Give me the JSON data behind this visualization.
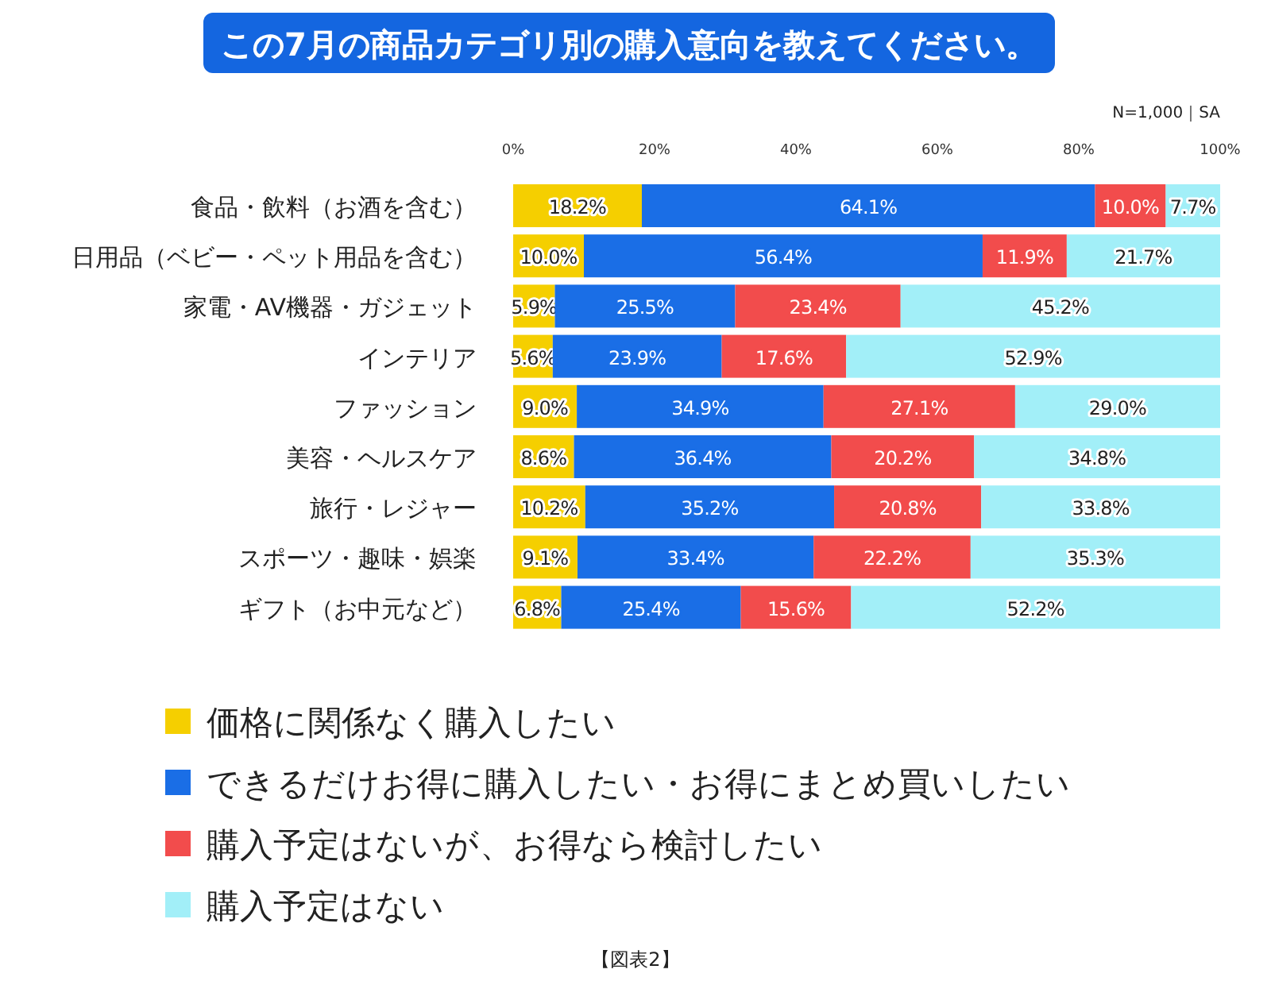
{
  "chart_data": {
    "type": "bar",
    "orientation": "horizontal",
    "stacked": true,
    "title": "この7月の商品カテゴリ別の購入意向を教えてください。",
    "categories": [
      "食品・飲料（お酒を含む）",
      "日用品（ベビー・ペット用品を含む）",
      "家電・AV機器・ガジェット",
      "インテリア",
      "ファッション",
      "美容・ヘルスケア",
      "旅行・レジャー",
      "スポーツ・趣味・娯楽",
      "ギフト（お中元など）"
    ],
    "series": [
      {
        "name": "価格に関係なく購入したい",
        "color": "#f5cf00",
        "values": [
          18.2,
          10.0,
          5.9,
          5.6,
          9.0,
          8.6,
          10.2,
          9.1,
          6.8
        ],
        "value_labels": [
          "18.2%",
          "10.0%",
          "5.9%",
          "5.6%",
          "9.0%",
          "8.6%",
          "10.2%",
          "9.1%",
          "6.8%"
        ]
      },
      {
        "name": "できるだけお得に購入したい・お得にまとめ買いしたい",
        "color": "#1a6ee6",
        "values": [
          64.1,
          56.4,
          25.5,
          23.9,
          34.9,
          36.4,
          35.2,
          33.4,
          25.4
        ],
        "value_labels": [
          "64.1%",
          "56.4%",
          "25.5%",
          "23.9%",
          "34.9%",
          "36.4%",
          "35.2%",
          "33.4%",
          "25.4%"
        ]
      },
      {
        "name": "購入予定はないが、お得なら検討したい",
        "color": "#f24c4c",
        "values": [
          10.0,
          11.9,
          23.4,
          17.6,
          27.1,
          20.2,
          20.8,
          22.2,
          15.6
        ],
        "value_labels": [
          "10.0%",
          "11.9%",
          "23.4%",
          "17.6%",
          "27.1%",
          "20.2%",
          "20.8%",
          "22.2%",
          "15.6%"
        ]
      },
      {
        "name": "購入予定はない",
        "color": "#a2eff8",
        "values": [
          7.7,
          21.7,
          45.2,
          52.9,
          29.0,
          34.8,
          33.8,
          35.3,
          52.2
        ],
        "value_labels": [
          "7.7%",
          "21.7%",
          "45.2%",
          "52.9%",
          "29.0%",
          "34.8%",
          "33.8%",
          "35.3%",
          "52.2%"
        ]
      }
    ],
    "xlim": [
      0,
      100
    ],
    "xticks": [
      {
        "value": 0,
        "label": "0%"
      },
      {
        "value": 20,
        "label": "20%"
      },
      {
        "value": 40,
        "label": "40%"
      },
      {
        "value": 60,
        "label": "60%"
      },
      {
        "value": 80,
        "label": "80%"
      },
      {
        "value": 100,
        "label": "100%"
      }
    ],
    "legend": "bottom",
    "grid": false,
    "annotations": [
      "N=1,000｜SA",
      "【図表2】"
    ]
  }
}
